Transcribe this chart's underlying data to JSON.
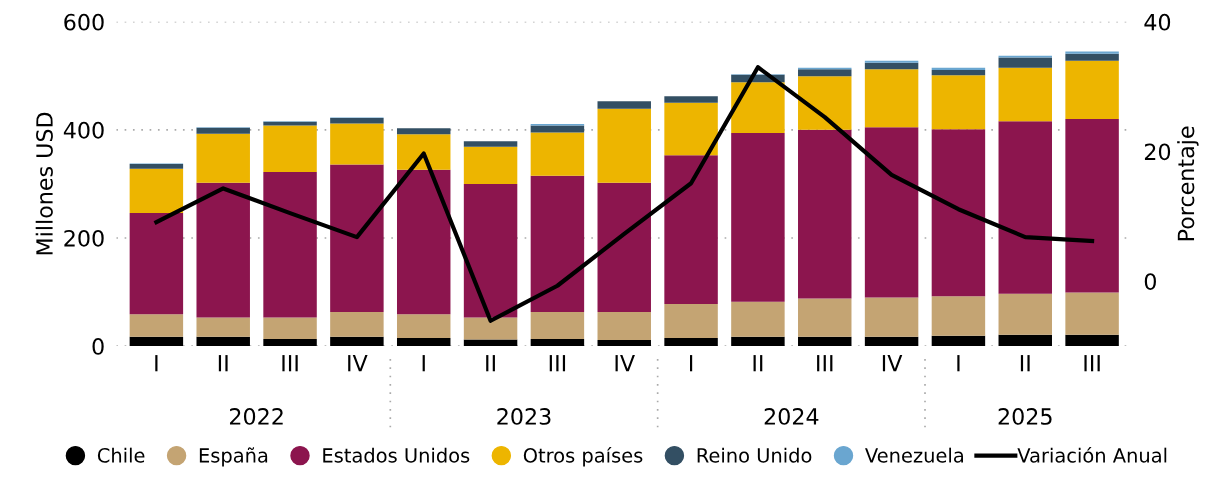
{
  "chart_data": {
    "type": "bar",
    "stacked": true,
    "ylabel": "Millones USD",
    "y2label": "Porcentaje",
    "categories": [
      "I",
      "II",
      "III",
      "IV",
      "I",
      "II",
      "III",
      "IV",
      "I",
      "II",
      "III",
      "IV",
      "I",
      "II",
      "III"
    ],
    "series": [
      {
        "name": "Chile",
        "color": "#000000",
        "values": [
          17,
          17,
          13,
          17,
          15,
          12,
          13,
          11,
          15,
          17,
          17,
          17,
          19,
          21,
          21
        ]
      },
      {
        "name": "España",
        "color": "#c4a473",
        "values": [
          42,
          36,
          40,
          46,
          44,
          41,
          50,
          52,
          63,
          65,
          71,
          73,
          73,
          76,
          78
        ]
      },
      {
        "name": "Estados Unidos",
        "color": "#8c154e",
        "values": [
          187,
          249,
          269,
          273,
          267,
          247,
          252,
          239,
          275,
          312,
          312,
          315,
          309,
          319,
          321
        ]
      },
      {
        "name": "Otros países",
        "color": "#edb500",
        "values": [
          82,
          91,
          86,
          76,
          66,
          69,
          80,
          137,
          97,
          94,
          99,
          107,
          100,
          99,
          108
        ]
      },
      {
        "name": "Reino Unido",
        "color": "#334f63",
        "values": [
          9,
          11,
          7,
          10,
          11,
          10,
          13,
          14,
          12,
          14,
          13,
          12,
          10,
          19,
          13
        ]
      },
      {
        "name": "Venezuela",
        "color": "#6aa6d0",
        "values": [
          1,
          1,
          1,
          1,
          null,
          null,
          3,
          null,
          null,
          1,
          3,
          4,
          4,
          3,
          4
        ]
      },
      {
        "name": "Variación Anual",
        "type": "line",
        "axis": "y2",
        "color": "#000000",
        "values": [
          9.1,
          14.3,
          10.5,
          6.8,
          19.7,
          -6.1,
          -0.7,
          7.3,
          15.1,
          33.0,
          25.3,
          16.4,
          11.1,
          6.8,
          6.2
        ]
      }
    ],
    "annotations": [
      "2022",
      "2023",
      "2024",
      "2025"
    ],
    "ylim": [
      0,
      600
    ],
    "yticks": [
      0,
      200,
      400,
      600
    ],
    "y2lim": [
      -10,
      40
    ],
    "y2ticks": [
      0,
      20,
      40
    ],
    "grid": "y",
    "legend": "bottom",
    "marker": "none",
    "line_style": "solid"
  }
}
